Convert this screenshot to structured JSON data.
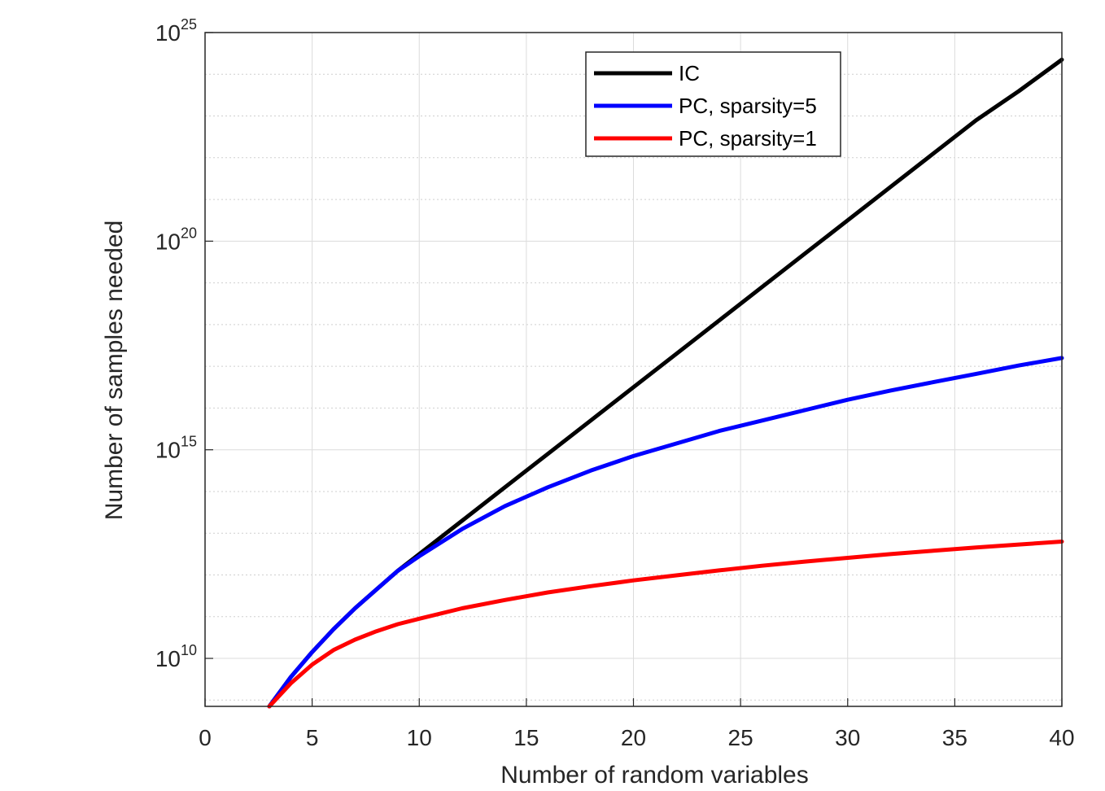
{
  "chart_data": {
    "type": "line",
    "title": "",
    "xlabel": "Number of random variables",
    "ylabel": "Number of samples needed",
    "xlim": [
      0,
      40
    ],
    "ylim_log10": [
      8.85,
      25
    ],
    "yscale": "log",
    "grid": true,
    "legend_position": "top-center",
    "x_ticks": [
      "0",
      "5",
      "10",
      "15",
      "20",
      "25",
      "30",
      "35",
      "40"
    ],
    "y_ticks": [
      {
        "base": "10",
        "exp": "10",
        "log10": 10
      },
      {
        "base": "10",
        "exp": "15",
        "log10": 15
      },
      {
        "base": "10",
        "exp": "20",
        "log10": 20
      },
      {
        "base": "10",
        "exp": "25",
        "log10": 25
      }
    ],
    "x": [
      3,
      4,
      5,
      6,
      7,
      8,
      9,
      10,
      12,
      14,
      16,
      18,
      20,
      22,
      24,
      26,
      28,
      30,
      32,
      34,
      36,
      38,
      40
    ],
    "series": [
      {
        "name": "IC",
        "color": "#000000",
        "log10_values": [
          8.85,
          9.55,
          10.15,
          10.7,
          11.2,
          11.65,
          12.1,
          12.5,
          13.3,
          14.1,
          14.9,
          15.7,
          16.5,
          17.3,
          18.1,
          18.9,
          19.7,
          20.5,
          21.3,
          22.1,
          22.9,
          23.6,
          24.35
        ]
      },
      {
        "name": "PC, sparsity=5",
        "color": "#0000ff",
        "log10_values": [
          8.85,
          9.55,
          10.15,
          10.7,
          11.2,
          11.65,
          12.1,
          12.45,
          13.1,
          13.65,
          14.1,
          14.5,
          14.85,
          15.15,
          15.45,
          15.7,
          15.95,
          16.2,
          16.42,
          16.62,
          16.82,
          17.02,
          17.2
        ]
      },
      {
        "name": "PC, sparsity=1",
        "color": "#ff0000",
        "log10_values": [
          8.85,
          9.4,
          9.85,
          10.2,
          10.45,
          10.65,
          10.82,
          10.95,
          11.2,
          11.4,
          11.58,
          11.73,
          11.87,
          11.99,
          12.11,
          12.22,
          12.32,
          12.41,
          12.5,
          12.58,
          12.66,
          12.73,
          12.8
        ]
      }
    ]
  }
}
